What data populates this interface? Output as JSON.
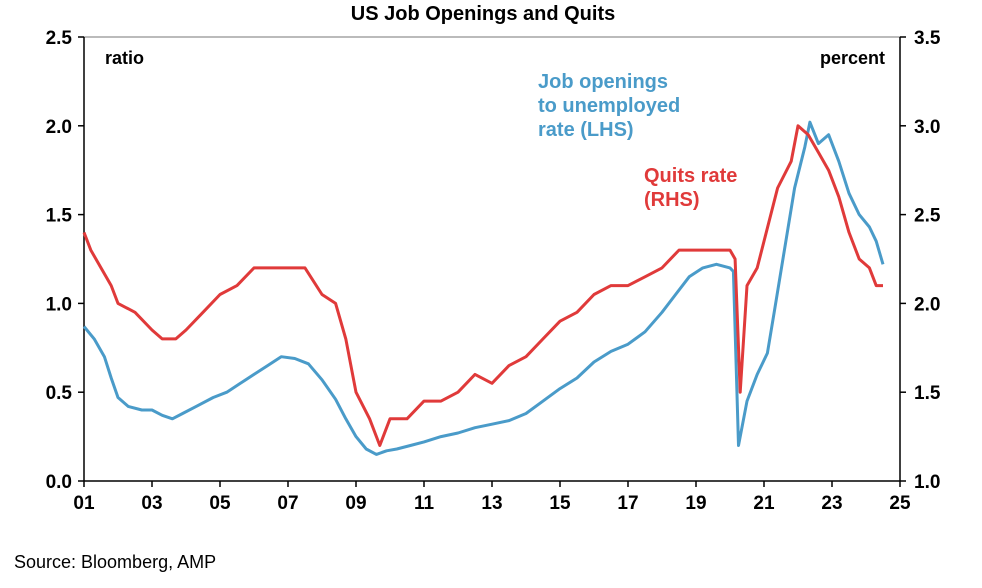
{
  "source": "Source: Bloomberg, AMP",
  "colors": {
    "openings": "#4a9bc9",
    "quits": "#e03a3a",
    "axis": "#000000"
  },
  "chart_data": {
    "type": "line",
    "title": "US Job Openings and Quits",
    "left_axis": {
      "unit_label": "ratio",
      "range": [
        0,
        2.5
      ],
      "ticks": [
        "0.0",
        "0.5",
        "1.0",
        "1.5",
        "2.0",
        "2.5"
      ]
    },
    "right_axis": {
      "unit_label": "percent",
      "range": [
        1.0,
        3.5
      ],
      "ticks": [
        "1.0",
        "1.5",
        "2.0",
        "2.5",
        "3.0",
        "3.5"
      ]
    },
    "x_axis": {
      "range": [
        2001,
        2025
      ],
      "ticks": [
        "01",
        "03",
        "05",
        "07",
        "09",
        "11",
        "13",
        "15",
        "17",
        "19",
        "21",
        "23",
        "25"
      ]
    },
    "annotations": {
      "openings": [
        "Job openings",
        "to unemployed",
        "rate (LHS)"
      ],
      "quits": [
        "Quits rate",
        "(RHS)"
      ]
    },
    "series": [
      {
        "key": "openings",
        "axis": "left",
        "points": [
          [
            2001.0,
            0.87
          ],
          [
            2001.3,
            0.8
          ],
          [
            2001.6,
            0.7
          ],
          [
            2001.8,
            0.58
          ],
          [
            2002.0,
            0.47
          ],
          [
            2002.3,
            0.42
          ],
          [
            2002.7,
            0.4
          ],
          [
            2003.0,
            0.4
          ],
          [
            2003.3,
            0.37
          ],
          [
            2003.6,
            0.35
          ],
          [
            2003.9,
            0.38
          ],
          [
            2004.3,
            0.42
          ],
          [
            2004.8,
            0.47
          ],
          [
            2005.2,
            0.5
          ],
          [
            2005.6,
            0.55
          ],
          [
            2006.0,
            0.6
          ],
          [
            2006.4,
            0.65
          ],
          [
            2006.8,
            0.7
          ],
          [
            2007.2,
            0.69
          ],
          [
            2007.6,
            0.66
          ],
          [
            2008.0,
            0.57
          ],
          [
            2008.4,
            0.46
          ],
          [
            2008.7,
            0.35
          ],
          [
            2009.0,
            0.25
          ],
          [
            2009.3,
            0.18
          ],
          [
            2009.6,
            0.15
          ],
          [
            2009.9,
            0.17
          ],
          [
            2010.2,
            0.18
          ],
          [
            2010.6,
            0.2
          ],
          [
            2011.0,
            0.22
          ],
          [
            2011.5,
            0.25
          ],
          [
            2012.0,
            0.27
          ],
          [
            2012.5,
            0.3
          ],
          [
            2013.0,
            0.32
          ],
          [
            2013.5,
            0.34
          ],
          [
            2014.0,
            0.38
          ],
          [
            2014.5,
            0.45
          ],
          [
            2015.0,
            0.52
          ],
          [
            2015.5,
            0.58
          ],
          [
            2016.0,
            0.67
          ],
          [
            2016.5,
            0.73
          ],
          [
            2017.0,
            0.77
          ],
          [
            2017.5,
            0.84
          ],
          [
            2018.0,
            0.95
          ],
          [
            2018.4,
            1.05
          ],
          [
            2018.8,
            1.15
          ],
          [
            2019.2,
            1.2
          ],
          [
            2019.6,
            1.22
          ],
          [
            2020.0,
            1.2
          ],
          [
            2020.1,
            1.18
          ],
          [
            2020.25,
            0.2
          ],
          [
            2020.5,
            0.45
          ],
          [
            2020.8,
            0.6
          ],
          [
            2021.1,
            0.72
          ],
          [
            2021.3,
            0.95
          ],
          [
            2021.6,
            1.3
          ],
          [
            2021.9,
            1.65
          ],
          [
            2022.2,
            1.88
          ],
          [
            2022.35,
            2.02
          ],
          [
            2022.6,
            1.9
          ],
          [
            2022.9,
            1.95
          ],
          [
            2023.2,
            1.8
          ],
          [
            2023.5,
            1.62
          ],
          [
            2023.8,
            1.5
          ],
          [
            2024.1,
            1.43
          ],
          [
            2024.3,
            1.35
          ],
          [
            2024.5,
            1.22
          ]
        ]
      },
      {
        "key": "quits",
        "axis": "right",
        "points": [
          [
            2001.0,
            2.4
          ],
          [
            2001.2,
            2.3
          ],
          [
            2001.5,
            2.2
          ],
          [
            2001.8,
            2.1
          ],
          [
            2002.0,
            2.0
          ],
          [
            2002.5,
            1.95
          ],
          [
            2003.0,
            1.85
          ],
          [
            2003.3,
            1.8
          ],
          [
            2003.7,
            1.8
          ],
          [
            2004.0,
            1.85
          ],
          [
            2004.5,
            1.95
          ],
          [
            2005.0,
            2.05
          ],
          [
            2005.5,
            2.1
          ],
          [
            2006.0,
            2.2
          ],
          [
            2006.5,
            2.2
          ],
          [
            2007.0,
            2.2
          ],
          [
            2007.5,
            2.2
          ],
          [
            2008.0,
            2.05
          ],
          [
            2008.4,
            2.0
          ],
          [
            2008.7,
            1.8
          ],
          [
            2009.0,
            1.5
          ],
          [
            2009.4,
            1.35
          ],
          [
            2009.7,
            1.2
          ],
          [
            2010.0,
            1.35
          ],
          [
            2010.5,
            1.35
          ],
          [
            2011.0,
            1.45
          ],
          [
            2011.5,
            1.45
          ],
          [
            2012.0,
            1.5
          ],
          [
            2012.5,
            1.6
          ],
          [
            2013.0,
            1.55
          ],
          [
            2013.5,
            1.65
          ],
          [
            2014.0,
            1.7
          ],
          [
            2014.5,
            1.8
          ],
          [
            2015.0,
            1.9
          ],
          [
            2015.5,
            1.95
          ],
          [
            2016.0,
            2.05
          ],
          [
            2016.5,
            2.1
          ],
          [
            2017.0,
            2.1
          ],
          [
            2017.5,
            2.15
          ],
          [
            2018.0,
            2.2
          ],
          [
            2018.5,
            2.3
          ],
          [
            2019.0,
            2.3
          ],
          [
            2019.5,
            2.3
          ],
          [
            2020.0,
            2.3
          ],
          [
            2020.15,
            2.25
          ],
          [
            2020.3,
            1.5
          ],
          [
            2020.5,
            2.1
          ],
          [
            2020.8,
            2.2
          ],
          [
            2021.0,
            2.35
          ],
          [
            2021.4,
            2.65
          ],
          [
            2021.8,
            2.8
          ],
          [
            2022.0,
            3.0
          ],
          [
            2022.3,
            2.95
          ],
          [
            2022.6,
            2.85
          ],
          [
            2022.9,
            2.75
          ],
          [
            2023.2,
            2.6
          ],
          [
            2023.5,
            2.4
          ],
          [
            2023.8,
            2.25
          ],
          [
            2024.1,
            2.2
          ],
          [
            2024.3,
            2.1
          ],
          [
            2024.5,
            2.1
          ]
        ]
      }
    ]
  }
}
